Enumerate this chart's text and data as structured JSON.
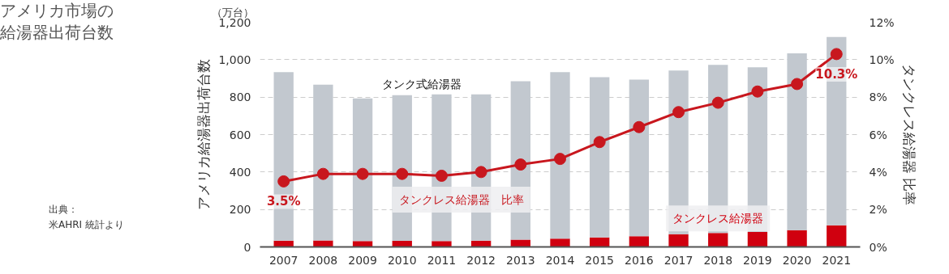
{
  "chart_data": {
    "type": "bar",
    "title": "アメリカ市場の給湯器出荷台数",
    "ylabel": "アメリカ給湯器出荷台数",
    "y2label": "タンクレス給湯器 比率",
    "annotations": [
      "（万台）",
      "出典：",
      "米AHRI 統計より"
    ],
    "categories": [
      "2007",
      "2008",
      "2009",
      "2010",
      "2011",
      "2012",
      "2013",
      "2014",
      "2015",
      "2016",
      "2017",
      "2018",
      "2019",
      "2020",
      "2021"
    ],
    "stacked": true,
    "series": [
      {
        "name": "タンクレス給湯器",
        "color": "#d0000f",
        "values": [
          33,
          34,
          31,
          32,
          31,
          33,
          39,
          44,
          51,
          57,
          68,
          75,
          80,
          90,
          115
        ]
      },
      {
        "name": "タンク式給湯器",
        "color": "#c2c8cf",
        "values": [
          900,
          833,
          762,
          778,
          784,
          782,
          846,
          889,
          856,
          836,
          874,
          897,
          879,
          944,
          1006
        ]
      },
      {
        "name": "タンクレス給湯器　比率",
        "type": "line",
        "axis": "y2",
        "color": "#c8171e",
        "values": [
          3.5,
          3.9,
          3.9,
          3.9,
          3.8,
          4.0,
          4.4,
          4.7,
          5.6,
          6.4,
          7.2,
          7.7,
          8.3,
          8.7,
          10.3
        ],
        "value_labels": [
          "3.5%",
          null,
          null,
          null,
          null,
          null,
          null,
          null,
          null,
          null,
          null,
          null,
          null,
          null,
          "10.3%"
        ]
      }
    ],
    "ylim": [
      0,
      1200
    ],
    "yticks": [
      0,
      200,
      400,
      600,
      800,
      {
        "value": 1000,
        "label": "1,000"
      },
      {
        "value": 1200,
        "label": "1,200"
      }
    ],
    "y2lim": [
      0,
      12
    ],
    "y2ticks": [
      {
        "value": 0,
        "label": "0%"
      },
      {
        "value": 2,
        "label": "2%"
      },
      {
        "value": 4,
        "label": "4%"
      },
      {
        "value": 6,
        "label": "6%"
      },
      {
        "value": 8,
        "label": "8%"
      },
      {
        "value": 10,
        "label": "10%"
      },
      {
        "value": 12,
        "label": "12%"
      }
    ],
    "grid": "y",
    "marker": "circle",
    "line_style": "solid"
  }
}
